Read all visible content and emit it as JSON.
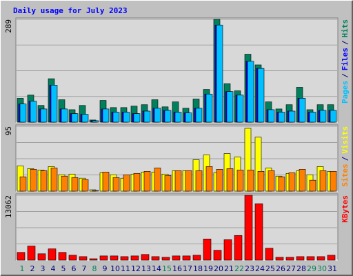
{
  "title": "Daily usage for July 2023",
  "legend_separator": "/",
  "categories": [
    1,
    2,
    3,
    4,
    5,
    6,
    7,
    8,
    9,
    10,
    11,
    12,
    13,
    14,
    15,
    16,
    17,
    18,
    19,
    20,
    21,
    22,
    23,
    24,
    25,
    26,
    27,
    28,
    29,
    30,
    31
  ],
  "category_colors": [
    "#00805c",
    "#000080",
    "#000080",
    "#000080",
    "#000080",
    "#000080",
    "#000080",
    "#00805c",
    "#000080",
    "#000080",
    "#000080",
    "#000080",
    "#000080",
    "#000080",
    "#00805c",
    "#000080",
    "#000080",
    "#000080",
    "#000080",
    "#000080",
    "#000080",
    "#00805c",
    "#000080",
    "#000080",
    "#000080",
    "#000080",
    "#000080",
    "#000080",
    "#00805c",
    "#00805c",
    "#000080"
  ],
  "chart_data": [
    {
      "type": "bar",
      "ylim": [
        0,
        289
      ],
      "yticks": [
        289
      ],
      "series": [
        {
          "name": "Hits",
          "color": "#00805c",
          "values": [
            67,
            76,
            47,
            122,
            63,
            35,
            47,
            6,
            61,
            41,
            41,
            45,
            49,
            63,
            43,
            57,
            39,
            65,
            92,
            289,
            108,
            88,
            191,
            161,
            57,
            37,
            49,
            98,
            35,
            49,
            49
          ]
        },
        {
          "name": "Files",
          "color": "#0000ff",
          "values": [
            51,
            59,
            37,
            104,
            37,
            24,
            22,
            4,
            37,
            28,
            28,
            24,
            31,
            39,
            33,
            28,
            26,
            39,
            79,
            273,
            86,
            76,
            171,
            151,
            35,
            28,
            31,
            67,
            28,
            33,
            33
          ]
        },
        {
          "name": "Pages",
          "color": "#00c0ff",
          "values": [
            51,
            59,
            37,
            104,
            37,
            24,
            22,
            4,
            37,
            28,
            28,
            24,
            31,
            39,
            33,
            28,
            26,
            39,
            79,
            273,
            86,
            76,
            171,
            151,
            35,
            28,
            31,
            67,
            28,
            33,
            33
          ]
        }
      ]
    },
    {
      "type": "bar",
      "ylim": [
        0,
        95
      ],
      "yticks": [
        95
      ],
      "series": [
        {
          "name": "Visits",
          "color": "#ffff00",
          "values": [
            37,
            33,
            31,
            36,
            24,
            25,
            19,
            2,
            27,
            24,
            19,
            25,
            28,
            28,
            25,
            30,
            30,
            46,
            53,
            27,
            55,
            50,
            92,
            79,
            34,
            22,
            26,
            30,
            24,
            36,
            29
          ]
        },
        {
          "name": "Sites",
          "color": "#ff8000",
          "values": [
            21,
            32,
            30,
            34,
            22,
            20,
            17,
            1,
            28,
            20,
            24,
            26,
            29,
            34,
            23,
            30,
            30,
            30,
            36,
            32,
            33,
            31,
            31,
            29,
            30,
            21,
            27,
            32,
            16,
            30,
            29
          ]
        }
      ]
    },
    {
      "type": "bar",
      "ylim": [
        0,
        13062
      ],
      "yticks": [
        13062
      ],
      "series": [
        {
          "name": "KBytes",
          "color": "#ff0000",
          "values": [
            1560,
            2840,
            1280,
            2270,
            1560,
            990,
            710,
            280,
            850,
            850,
            710,
            850,
            1140,
            710,
            570,
            850,
            850,
            990,
            4260,
            1990,
            4120,
            4970,
            13062,
            11360,
            2410,
            570,
            570,
            710,
            710,
            710,
            990
          ]
        }
      ]
    }
  ]
}
